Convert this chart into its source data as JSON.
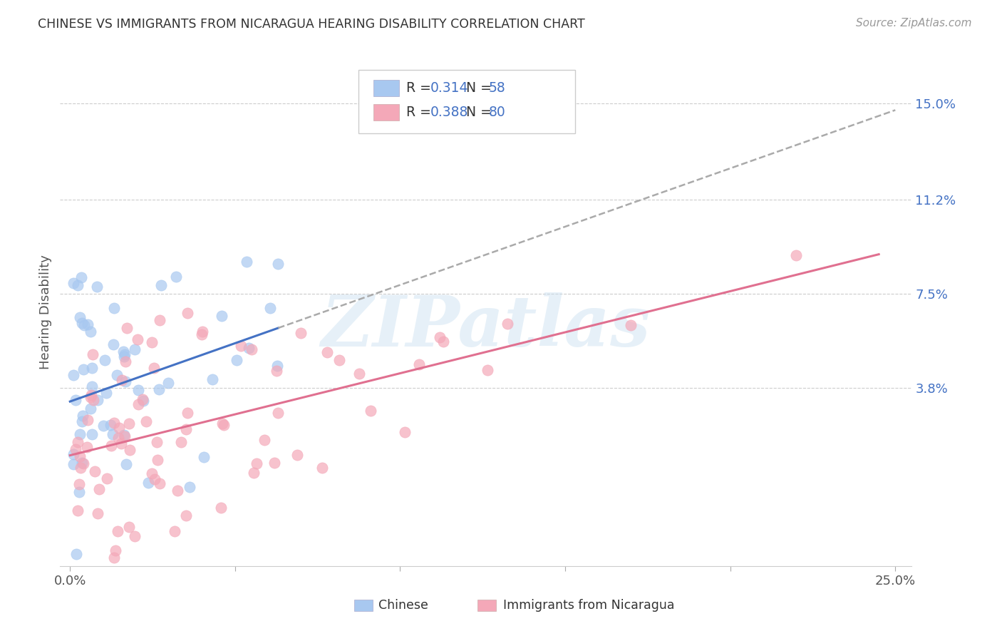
{
  "title": "CHINESE VS IMMIGRANTS FROM NICARAGUA HEARING DISABILITY CORRELATION CHART",
  "source": "Source: ZipAtlas.com",
  "ylabel": "Hearing Disability",
  "ytick_labels": [
    "3.8%",
    "7.5%",
    "11.2%",
    "15.0%"
  ],
  "ytick_values": [
    0.038,
    0.075,
    0.112,
    0.15
  ],
  "xlim": [
    0.0,
    0.25
  ],
  "ylim": [
    -0.032,
    0.168
  ],
  "chinese_color": "#a8c8f0",
  "nicaragua_color": "#f4a8b8",
  "chinese_line_color": "#4472c4",
  "nicaragua_line_color": "#e07090",
  "dashed_line_color": "#aaaaaa",
  "watermark_text": "ZIPatlas",
  "legend_blue_color": "#4472c4",
  "legend_pink_color": "#e07090",
  "chinese_R": 0.314,
  "nicaragua_R": 0.388,
  "chinese_N": 58,
  "nicaragua_N": 80,
  "chinese_seed": 42,
  "nicaragua_seed": 77
}
